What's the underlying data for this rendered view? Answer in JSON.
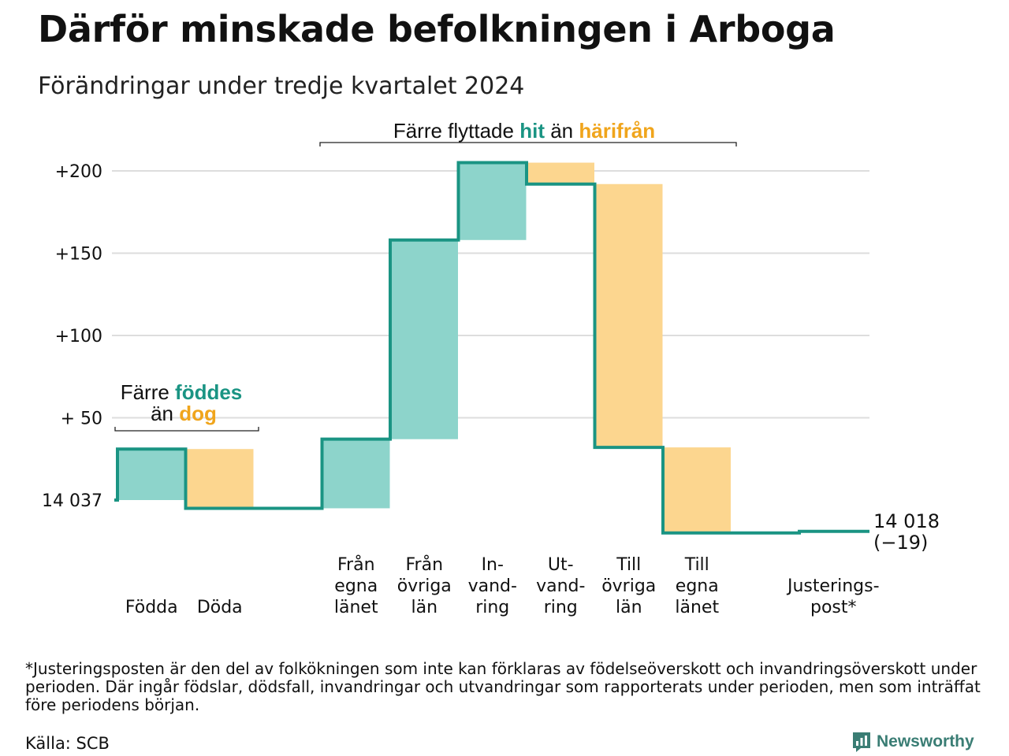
{
  "title": "Därför minskade befolkningen i Arboga",
  "subtitle": "Förändringar under tredje kvartalet 2024",
  "colors": {
    "teal": "#8dd4cb",
    "orange": "#fcd68f",
    "line": "#1a9483",
    "teal_text": "#1a9483",
    "orange_text": "#f0a51c",
    "grid": "#dddddd"
  },
  "chart_data": {
    "type": "waterfall",
    "title": "Därför minskade befolkningen i Arboga",
    "subtitle": "Förändringar under tredje kvartalet 2024",
    "start_value": 14037,
    "end_value": 14018,
    "net_change": -19,
    "y_ticks": [
      {
        "value": 200,
        "label": "+200"
      },
      {
        "value": 150,
        "label": "+150"
      },
      {
        "value": 100,
        "label": "+100"
      },
      {
        "value": 50,
        "label": "+ 50"
      },
      {
        "value": 0,
        "label": "14 037"
      }
    ],
    "ylim": [
      -30,
      200
    ],
    "categories": [
      {
        "key": "fodda",
        "lines": [
          "Födda"
        ],
        "type": "in",
        "value": 31,
        "from": 0,
        "to": 31
      },
      {
        "key": "doda",
        "lines": [
          "Döda"
        ],
        "type": "out",
        "value": -36,
        "from": 31,
        "to": -5
      },
      {
        "key": "gap",
        "lines": [],
        "type": "gap"
      },
      {
        "key": "fran_egna",
        "lines": [
          "Från",
          "egna",
          "länet"
        ],
        "type": "in",
        "value": 42,
        "from": -5,
        "to": 37
      },
      {
        "key": "fran_ovriga",
        "lines": [
          "Från",
          "övriga",
          "län"
        ],
        "type": "in",
        "value": 121,
        "from": 37,
        "to": 158
      },
      {
        "key": "invandring",
        "lines": [
          "In-",
          "vand-",
          "ring"
        ],
        "type": "in",
        "value": 47,
        "from": 158,
        "to": 205
      },
      {
        "key": "utvandring",
        "lines": [
          "Ut-",
          "vand-",
          "ring"
        ],
        "type": "out",
        "value": -13,
        "from": 205,
        "to": 192
      },
      {
        "key": "till_ovriga",
        "lines": [
          "Till",
          "övriga",
          "län"
        ],
        "type": "out",
        "value": -160,
        "from": 192,
        "to": 32
      },
      {
        "key": "till_egna",
        "lines": [
          "Till",
          "egna",
          "länet"
        ],
        "type": "out",
        "value": -52,
        "from": 32,
        "to": -20
      },
      {
        "key": "gap2",
        "lines": [],
        "type": "gap"
      },
      {
        "key": "justering",
        "lines": [
          "Justerings-",
          "post*"
        ],
        "type": "adj",
        "value": 1,
        "from": -20,
        "to": -19
      }
    ],
    "end_label": [
      "14 018",
      "(−19)"
    ],
    "annotations": {
      "births": {
        "line1_plain": "Färre ",
        "line1_bold": "föddes",
        "line2_plain": "än ",
        "line2_bold": "dog"
      },
      "moves": {
        "plain1": "Färre flyttade ",
        "bold1": "hit",
        "plain2": " än ",
        "bold2": "härifrån"
      }
    }
  },
  "footnote": "*Justeringsposten är den del av folkökningen som inte kan förklaras av födelseöverskott och invandringsöverskott under perioden. Där ingår födslar, dödsfall, invandringar och utvandringar som rapporterats under perioden, men som inträffat före periodens början.",
  "source": "Källa: SCB",
  "brand": {
    "name": "Newsworthy",
    "icon": "newsworthy-logo-icon"
  }
}
